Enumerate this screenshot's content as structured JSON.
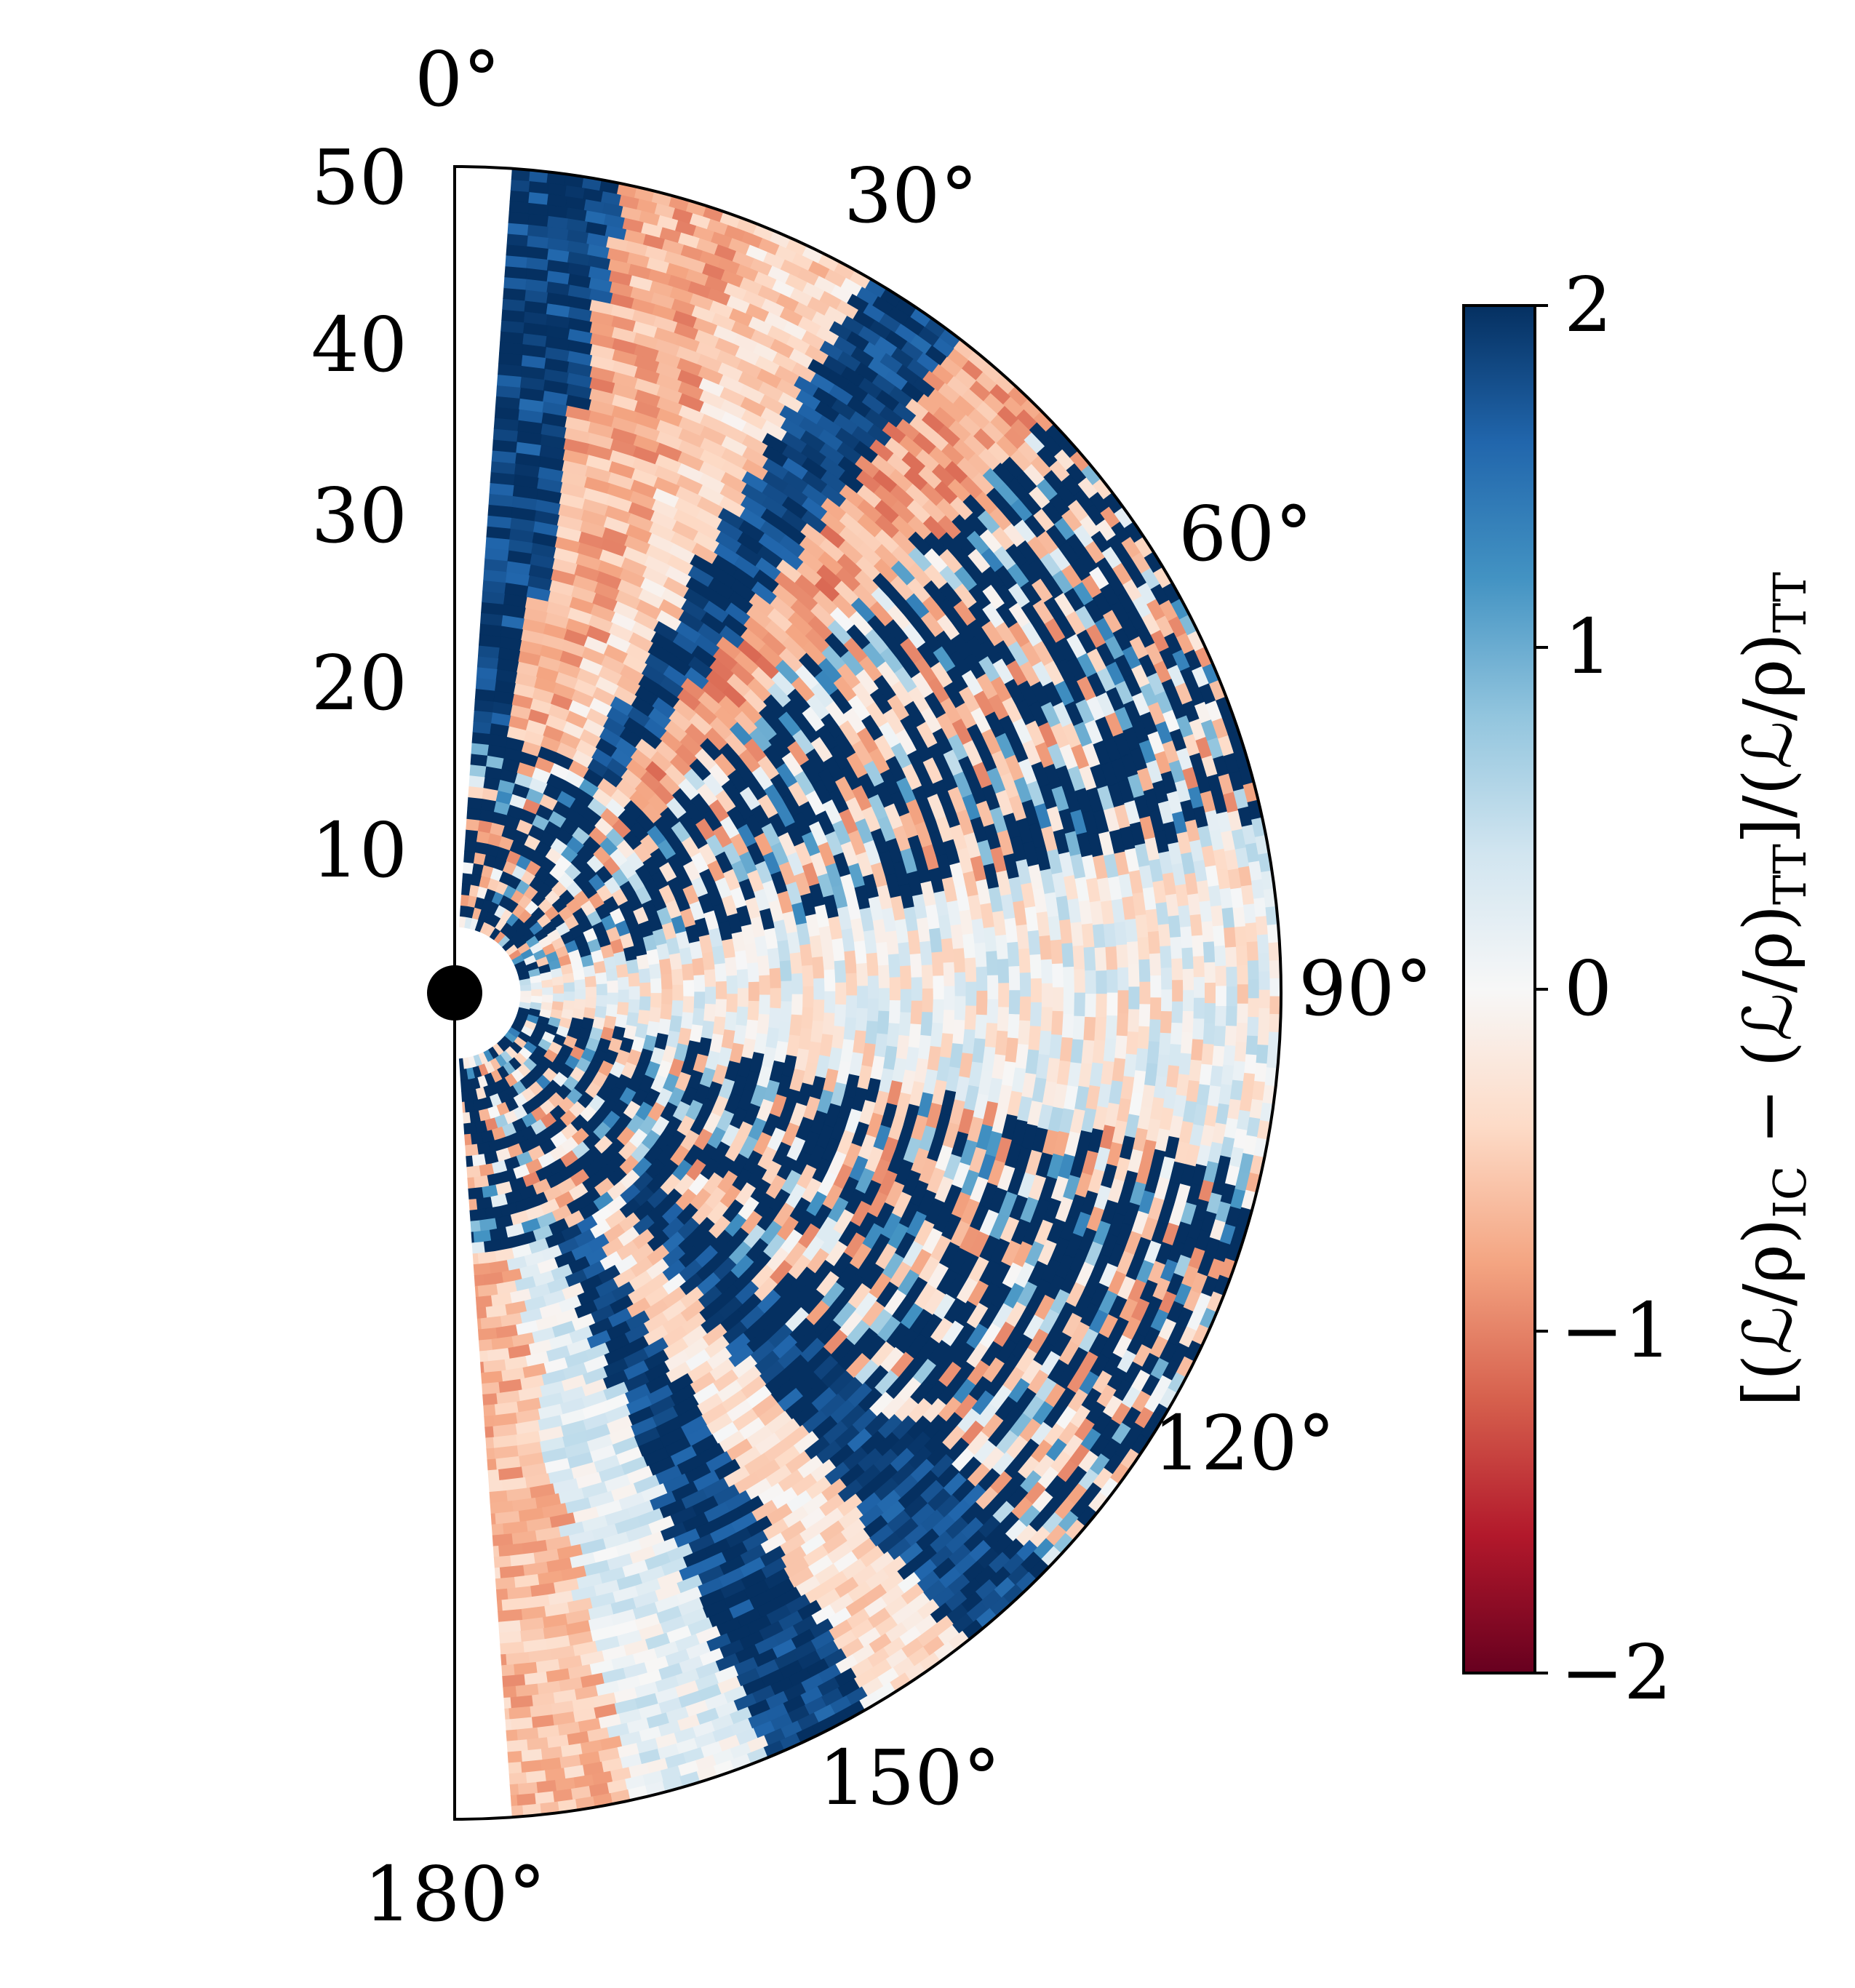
{
  "chart_data": {
    "type": "heatmap",
    "projection": "polar half-disk (meridional plane)",
    "title": "",
    "radial_axis": {
      "range": [
        0,
        50
      ],
      "ticks": [
        "10",
        "20",
        "30",
        "40",
        "50"
      ],
      "tick_values": [
        10,
        20,
        30,
        40,
        50
      ]
    },
    "angular_axis": {
      "range_deg": [
        0,
        180
      ],
      "ticks": [
        "0°",
        "30°",
        "60°",
        "90°",
        "120°",
        "150°",
        "180°"
      ],
      "tick_values_deg": [
        0,
        30,
        60,
        90,
        120,
        150,
        180
      ]
    },
    "central_object": "black disk at origin",
    "inner_excised_radius": 4,
    "colorbar": {
      "label_main": "[(ℒ/ρ)",
      "label_sub1": "IC",
      "label_mid": " − (ℒ/ρ)",
      "label_sub2": "TT",
      "label_end": "]/(ℒ/ρ)",
      "label_sub3": "TT",
      "range": [
        -2,
        2
      ],
      "ticks": [
        "−2",
        "−1",
        "0",
        "1",
        "2"
      ],
      "tick_values": [
        -2,
        -1,
        0,
        1,
        2
      ],
      "colormap": "RdBu",
      "colors": [
        "#67001f",
        "#b2182b",
        "#d6604d",
        "#f4a582",
        "#fddbc7",
        "#f7f7f7",
        "#d1e5f0",
        "#92c5de",
        "#4393c3",
        "#2166ac",
        "#053061"
      ]
    },
    "pattern": {
      "description": "value of relative difference per (r, theta) cell",
      "equatorial_band_deg": [
        78,
        102
      ],
      "equatorial_band_value_range": [
        -0.6,
        0.6
      ],
      "polar_wedge_values": [
        {
          "theta_range_deg": [
            4,
            12
          ],
          "value": 1.9
        },
        {
          "theta_range_deg": [
            12,
            22
          ],
          "value": -0.7
        },
        {
          "theta_range_deg": [
            22,
            30
          ],
          "value": -0.4
        },
        {
          "theta_range_deg": [
            30,
            38
          ],
          "value": 1.9
        },
        {
          "theta_range_deg": [
            38,
            46
          ],
          "value": -0.8
        },
        {
          "theta_range_deg": [
            134,
            142
          ],
          "value": 1.9
        },
        {
          "theta_range_deg": [
            142,
            150
          ],
          "value": -0.3
        },
        {
          "theta_range_deg": [
            150,
            158
          ],
          "value": 1.9
        },
        {
          "theta_range_deg": [
            158,
            168
          ],
          "value": 0.2
        },
        {
          "theta_range_deg": [
            168,
            176
          ],
          "value": -0.6
        }
      ]
    }
  }
}
